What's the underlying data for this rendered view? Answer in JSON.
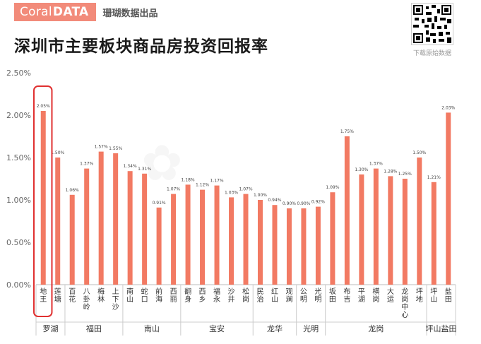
{
  "header": {
    "brand_light": "Coral",
    "brand_bold": "DATA",
    "brand_sub": "珊瑚数据出品",
    "qr_label": "下载原始数据",
    "title": "深圳市主要板块商品房投资回报率"
  },
  "colors": {
    "bar": "#f27a63",
    "highlight": "#e03030",
    "brand": "#f28b7a"
  },
  "chart_data": {
    "type": "bar",
    "title": "深圳市主要板块商品房投资回报率",
    "categories": [
      "地王",
      "莲塘",
      "百花",
      "八卦岭",
      "梅林",
      "上下沙",
      "南山",
      "蛇口",
      "前海",
      "西丽",
      "翻身",
      "西乡",
      "福永",
      "沙井",
      "松岗",
      "民治",
      "红山",
      "观澜",
      "公明",
      "光明",
      "坂田",
      "布吉",
      "平湖",
      "横岗",
      "大运",
      "龙岗中心",
      "坪地",
      "坪山",
      "盐田"
    ],
    "values": [
      2.05,
      1.5,
      1.06,
      1.37,
      1.57,
      1.55,
      1.34,
      1.31,
      0.91,
      1.07,
      1.18,
      1.12,
      1.17,
      1.03,
      1.07,
      1.0,
      0.94,
      0.9,
      0.9,
      0.92,
      1.09,
      1.75,
      1.3,
      1.37,
      1.28,
      1.25,
      1.5,
      1.21,
      2.03
    ],
    "labels": [
      "2.05%",
      "1.50%",
      "1.06%",
      "1.37%",
      "1.57%",
      "1.55%",
      "1.34%",
      "1.31%",
      "0.91%",
      "1.07%",
      "1.18%",
      "1.12%",
      "1.17%",
      "1.03%",
      "1.07%",
      "1.00%",
      "0.94%",
      "0.90%",
      "0.90%",
      "0.92%",
      "1.09%",
      "1.75%",
      "1.30%",
      "1.37%",
      "1.28%",
      "1.25%",
      "1.50%",
      "1.21%",
      "2.03%"
    ],
    "groups": [
      {
        "name": "罗湖",
        "count": 2
      },
      {
        "name": "福田",
        "count": 4
      },
      {
        "name": "南山",
        "count": 4
      },
      {
        "name": "宝安",
        "count": 5
      },
      {
        "name": "龙华",
        "count": 3
      },
      {
        "name": "光明",
        "count": 2
      },
      {
        "name": "龙岗",
        "count": 7
      },
      {
        "name": "坪山盐田",
        "count": 2
      }
    ],
    "yticks": [
      "0.00%",
      "0.50%",
      "1.00%",
      "1.50%",
      "2.00%",
      "2.50%"
    ],
    "ylim": [
      0,
      2.5
    ],
    "highlight_index": 0,
    "grid": false
  }
}
